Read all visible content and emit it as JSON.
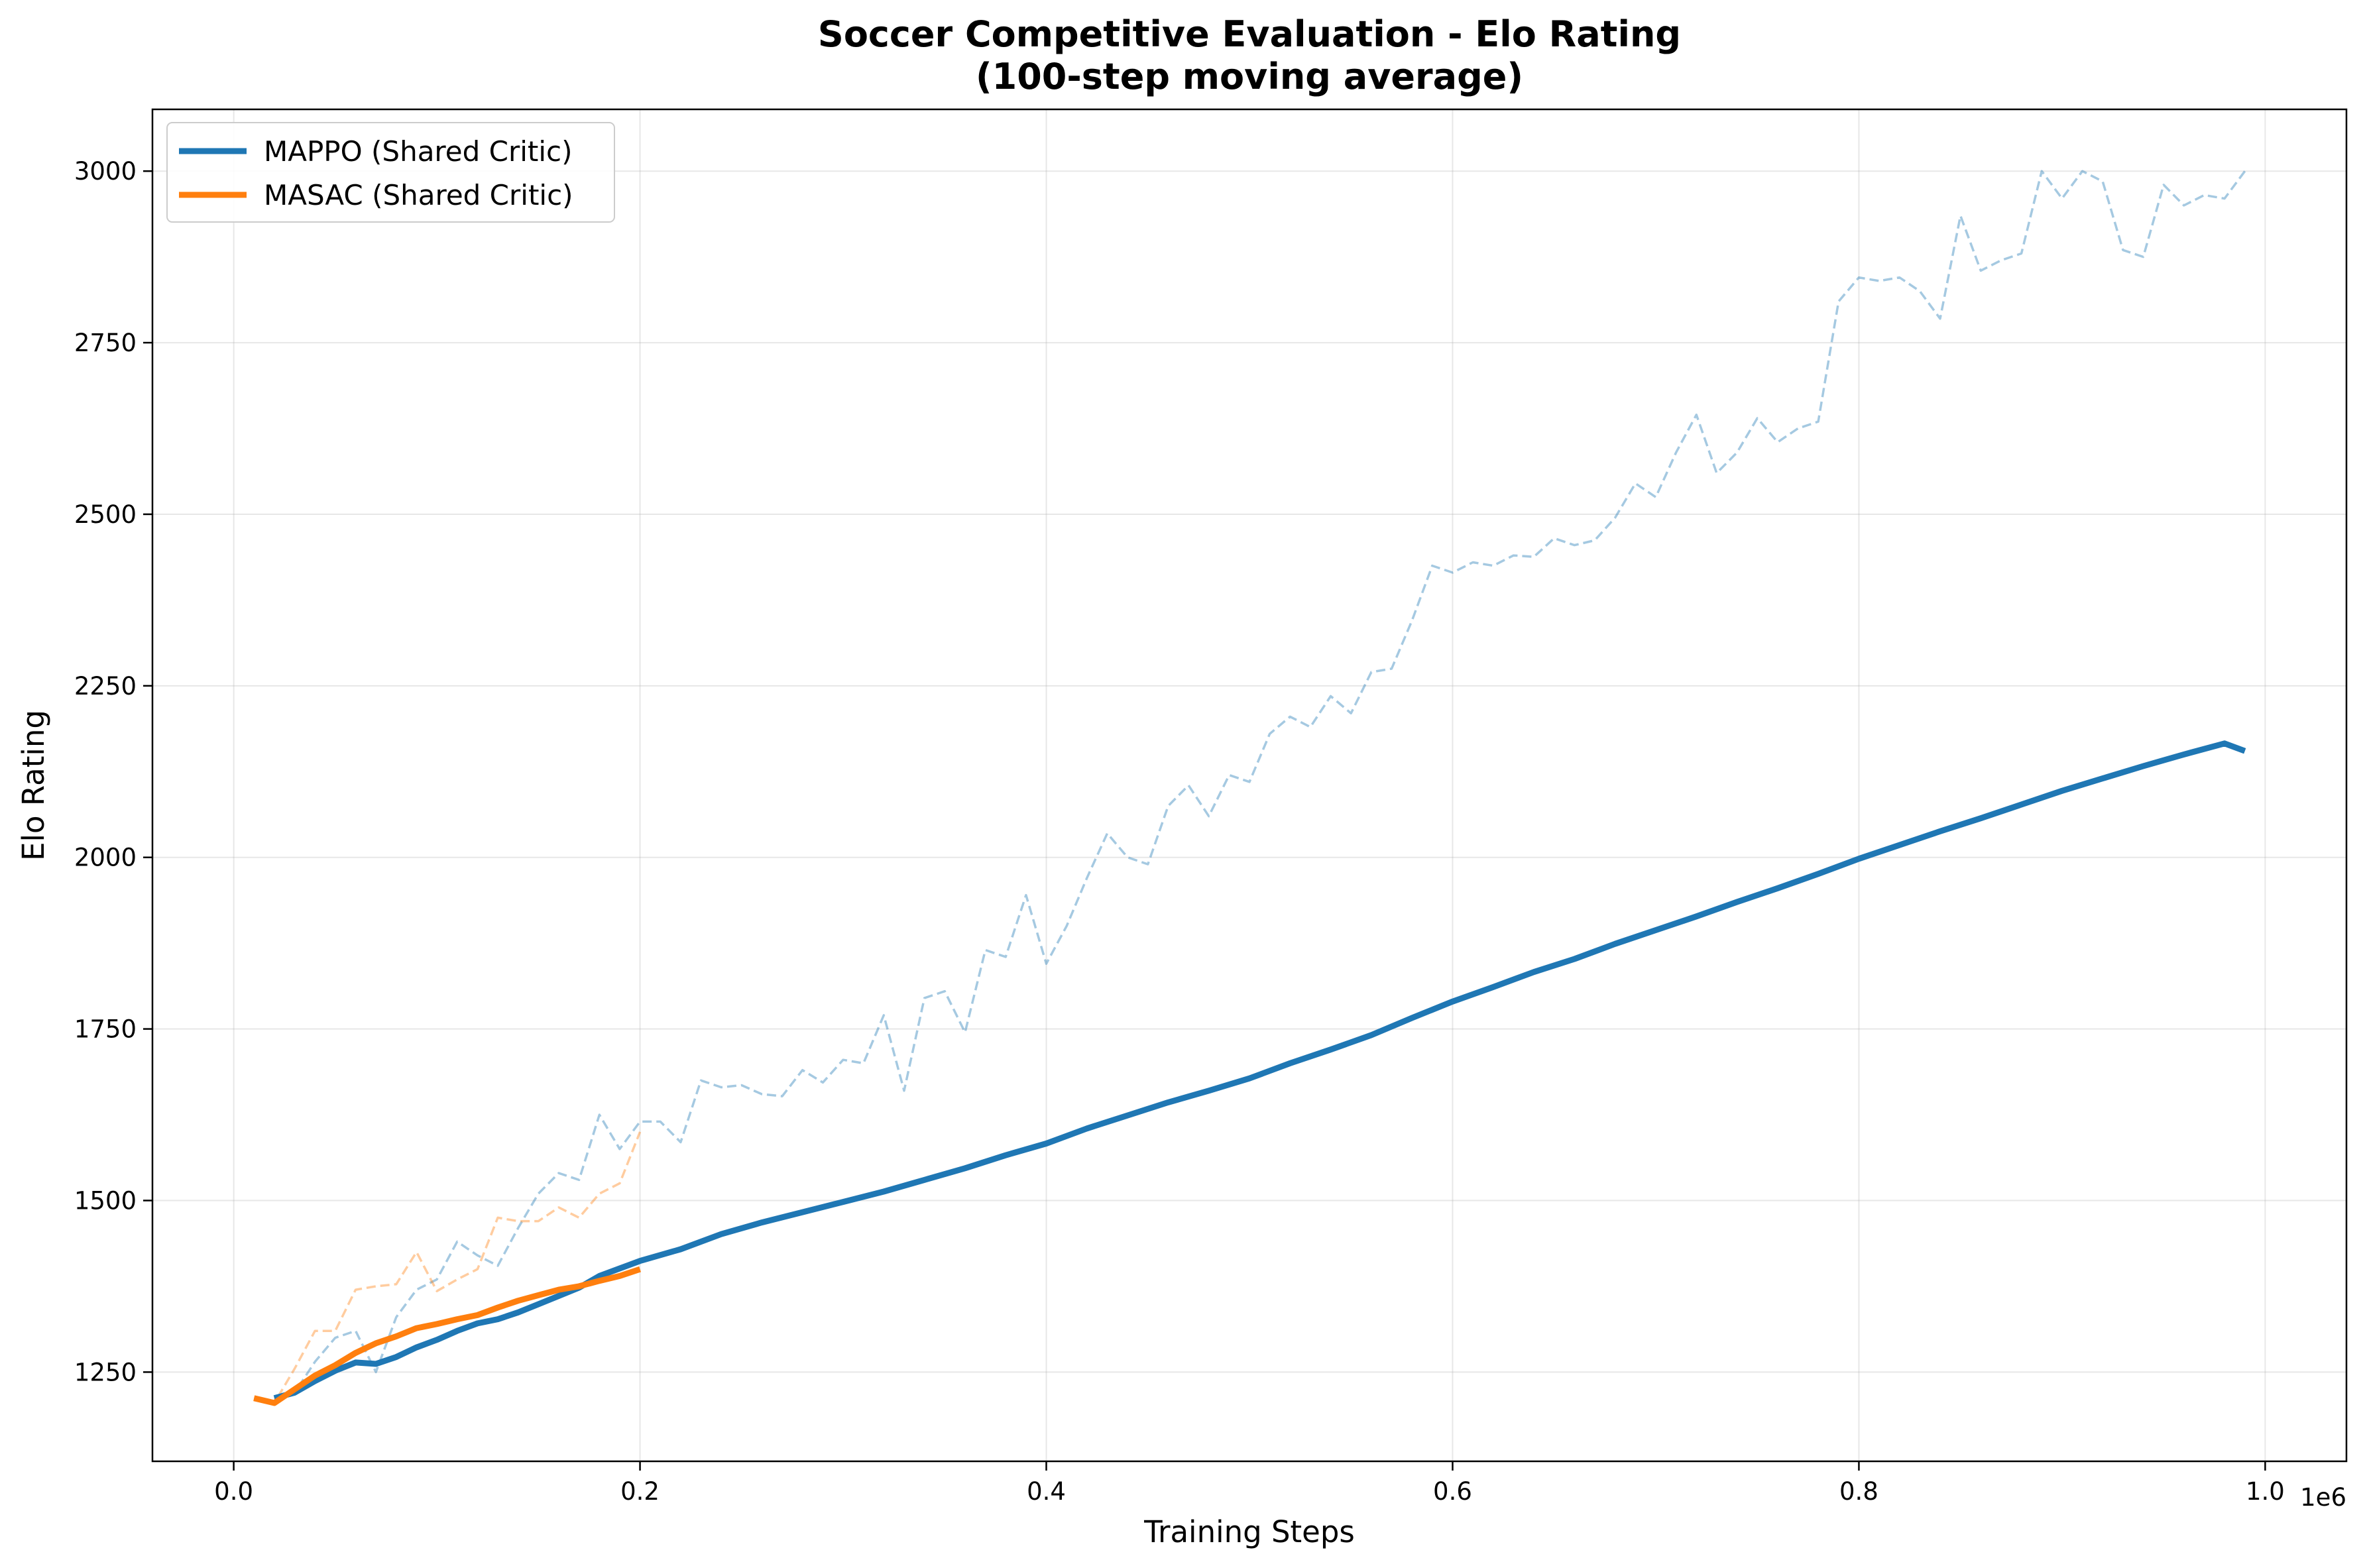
{
  "chart_data": {
    "type": "line",
    "title": "Soccer Competitive Evaluation - Elo Rating",
    "subtitle": "(100-step moving average)",
    "xlabel": "Training Steps",
    "ylabel": "Elo Rating",
    "x_offset_label": "1e6",
    "xlim": [
      -0.04,
      1.04
    ],
    "ylim": [
      1120,
      3090
    ],
    "x_ticks": [
      0.0,
      0.2,
      0.4,
      0.6,
      0.8,
      1.0
    ],
    "x_tick_labels": [
      "0.0",
      "0.2",
      "0.4",
      "0.6",
      "0.8",
      "1.0"
    ],
    "y_ticks": [
      1250,
      1500,
      1750,
      2000,
      2250,
      2500,
      2750,
      3000
    ],
    "y_tick_labels": [
      "1250",
      "1500",
      "1750",
      "2000",
      "2250",
      "2500",
      "2750",
      "3000"
    ],
    "grid": true,
    "legend_position": "upper left",
    "x_unit_note": "x values are in units of 1e6 training steps",
    "series": [
      {
        "name": "MAPPO (Shared Critic)",
        "color": "#1f77b4",
        "style": "solid",
        "x": [
          0.02,
          0.03,
          0.04,
          0.05,
          0.06,
          0.07,
          0.08,
          0.09,
          0.1,
          0.11,
          0.12,
          0.13,
          0.14,
          0.15,
          0.16,
          0.17,
          0.18,
          0.19,
          0.2,
          0.22,
          0.24,
          0.26,
          0.28,
          0.3,
          0.32,
          0.34,
          0.36,
          0.38,
          0.4,
          0.42,
          0.44,
          0.46,
          0.48,
          0.5,
          0.52,
          0.54,
          0.56,
          0.58,
          0.6,
          0.62,
          0.64,
          0.66,
          0.68,
          0.7,
          0.72,
          0.74,
          0.76,
          0.78,
          0.8,
          0.82,
          0.84,
          0.86,
          0.88,
          0.9,
          0.92,
          0.94,
          0.96,
          0.98,
          0.99
        ],
        "y": [
          1212,
          1220,
          1237,
          1252,
          1264,
          1262,
          1272,
          1286,
          1297,
          1310,
          1321,
          1327,
          1337,
          1349,
          1361,
          1373,
          1390,
          1401,
          1412,
          1429,
          1451,
          1468,
          1483,
          1498,
          1513,
          1530,
          1547,
          1566,
          1583,
          1605,
          1624,
          1643,
          1660,
          1678,
          1700,
          1720,
          1741,
          1766,
          1790,
          1811,
          1833,
          1852,
          1874,
          1894,
          1914,
          1935,
          1955,
          1976,
          1998,
          2018,
          2038,
          2057,
          2077,
          2097,
          2115,
          2133,
          2150,
          2166,
          2155
        ]
      },
      {
        "name": "",
        "color": "#1f77b4",
        "style": "dashed-faint",
        "x": [
          0.02,
          0.03,
          0.04,
          0.05,
          0.06,
          0.07,
          0.08,
          0.09,
          0.1,
          0.11,
          0.12,
          0.13,
          0.14,
          0.15,
          0.16,
          0.17,
          0.18,
          0.19,
          0.2,
          0.21,
          0.22,
          0.23,
          0.24,
          0.25,
          0.26,
          0.27,
          0.28,
          0.29,
          0.3,
          0.31,
          0.32,
          0.33,
          0.34,
          0.35,
          0.36,
          0.37,
          0.38,
          0.39,
          0.4,
          0.41,
          0.42,
          0.43,
          0.44,
          0.45,
          0.46,
          0.47,
          0.48,
          0.49,
          0.5,
          0.51,
          0.52,
          0.53,
          0.54,
          0.55,
          0.56,
          0.57,
          0.58,
          0.59,
          0.6,
          0.61,
          0.62,
          0.63,
          0.64,
          0.65,
          0.66,
          0.67,
          0.68,
          0.69,
          0.7,
          0.71,
          0.72,
          0.73,
          0.74,
          0.75,
          0.76,
          0.77,
          0.78,
          0.79,
          0.8,
          0.81,
          0.82,
          0.83,
          0.84,
          0.85,
          0.86,
          0.87,
          0.88,
          0.89,
          0.9,
          0.91,
          0.92,
          0.93,
          0.94,
          0.95,
          0.96,
          0.97,
          0.98,
          0.99
        ],
        "y": [
          1212,
          1220,
          1265,
          1300,
          1310,
          1250,
          1330,
          1370,
          1385,
          1440,
          1420,
          1405,
          1460,
          1510,
          1540,
          1530,
          1625,
          1575,
          1615,
          1615,
          1585,
          1675,
          1665,
          1668,
          1655,
          1652,
          1690,
          1672,
          1705,
          1700,
          1770,
          1660,
          1795,
          1805,
          1745,
          1865,
          1855,
          1945,
          1845,
          1900,
          1970,
          2035,
          2000,
          1990,
          2075,
          2105,
          2060,
          2120,
          2110,
          2180,
          2205,
          2190,
          2235,
          2210,
          2270,
          2275,
          2345,
          2425,
          2415,
          2430,
          2425,
          2440,
          2438,
          2465,
          2455,
          2462,
          2495,
          2545,
          2525,
          2590,
          2645,
          2560,
          2590,
          2640,
          2605,
          2625,
          2635,
          2810,
          2845,
          2840,
          2845,
          2825,
          2785,
          2935,
          2855,
          2870,
          2880,
          3000,
          2960,
          3000,
          2985,
          2885,
          2875,
          2980,
          2950,
          2965,
          2960,
          3000
        ]
      },
      {
        "name": "MASAC (Shared Critic)",
        "color": "#ff7f0e",
        "style": "solid",
        "x": [
          0.01,
          0.02,
          0.03,
          0.04,
          0.05,
          0.06,
          0.07,
          0.08,
          0.09,
          0.1,
          0.11,
          0.12,
          0.13,
          0.14,
          0.15,
          0.16,
          0.17,
          0.18,
          0.19,
          0.2
        ],
        "y": [
          1212,
          1205,
          1225,
          1245,
          1260,
          1278,
          1292,
          1302,
          1314,
          1320,
          1327,
          1333,
          1344,
          1354,
          1362,
          1370,
          1375,
          1383,
          1390,
          1400
        ]
      },
      {
        "name": "",
        "color": "#ff7f0e",
        "style": "dashed-faint",
        "x": [
          0.01,
          0.02,
          0.03,
          0.04,
          0.05,
          0.06,
          0.07,
          0.08,
          0.09,
          0.1,
          0.11,
          0.12,
          0.13,
          0.14,
          0.15,
          0.16,
          0.17,
          0.18,
          0.19,
          0.2
        ],
        "y": [
          1212,
          1205,
          1255,
          1310,
          1310,
          1370,
          1375,
          1378,
          1425,
          1368,
          1385,
          1400,
          1475,
          1470,
          1470,
          1490,
          1475,
          1510,
          1525,
          1600
        ]
      }
    ]
  }
}
